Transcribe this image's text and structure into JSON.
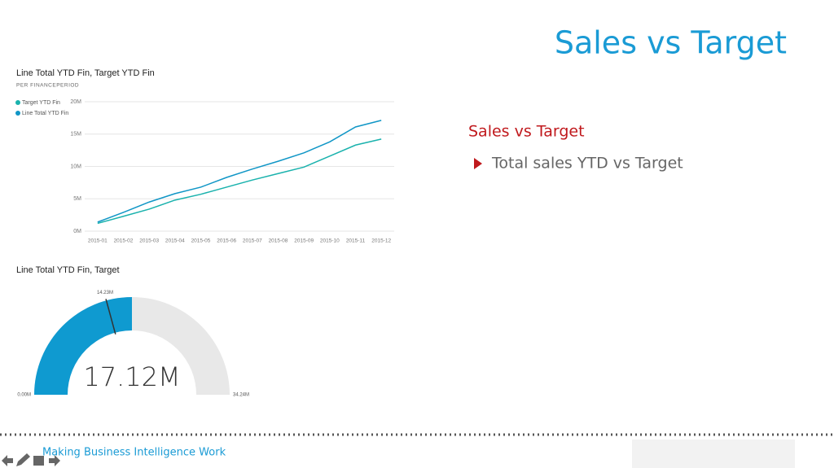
{
  "slide": {
    "title": "Sales vs Target",
    "subtitle": "Sales vs Target",
    "bullet": "Total sales YTD vs Target",
    "footer": "Making Business Intelligence Work"
  },
  "chart_data": [
    {
      "type": "line",
      "title": "Line Total YTD Fin, Target YTD Fin",
      "subtitle": "PER FINANCEPERIOD",
      "categories": [
        "2015-01",
        "2015-02",
        "2015-03",
        "2015-04",
        "2015-05",
        "2015-06",
        "2015-07",
        "2015-08",
        "2015-09",
        "2015-10",
        "2015-11",
        "2015-12"
      ],
      "series": [
        {
          "name": "Target YTD Fin",
          "color": "#1ab2ad",
          "values": [
            1.2,
            2.3,
            3.4,
            4.8,
            5.7,
            6.8,
            7.9,
            8.9,
            9.9,
            11.6,
            13.3,
            14.23
          ]
        },
        {
          "name": "Line Total YTD Fin",
          "color": "#1096c6",
          "values": [
            1.4,
            2.9,
            4.5,
            5.8,
            6.8,
            8.3,
            9.6,
            10.8,
            12.1,
            13.8,
            16.1,
            17.12
          ]
        }
      ],
      "ylim": [
        0,
        20
      ],
      "yticks": [
        {
          "value": 0,
          "label": "0M"
        },
        {
          "value": 5,
          "label": "5M"
        },
        {
          "value": 10,
          "label": "10M"
        },
        {
          "value": 15,
          "label": "15M"
        },
        {
          "value": 20,
          "label": "20M"
        }
      ],
      "grid": true
    },
    {
      "type": "gauge",
      "title": "Line Total YTD Fin, Target",
      "value": 17.12,
      "value_label": "17.12M",
      "color": "#0f9ad0",
      "min": {
        "value": 0,
        "label": "0.00M"
      },
      "max": {
        "value": 34.24,
        "label": "34.24M"
      },
      "target": {
        "value": 14.23,
        "label": "14.23M"
      }
    }
  ]
}
